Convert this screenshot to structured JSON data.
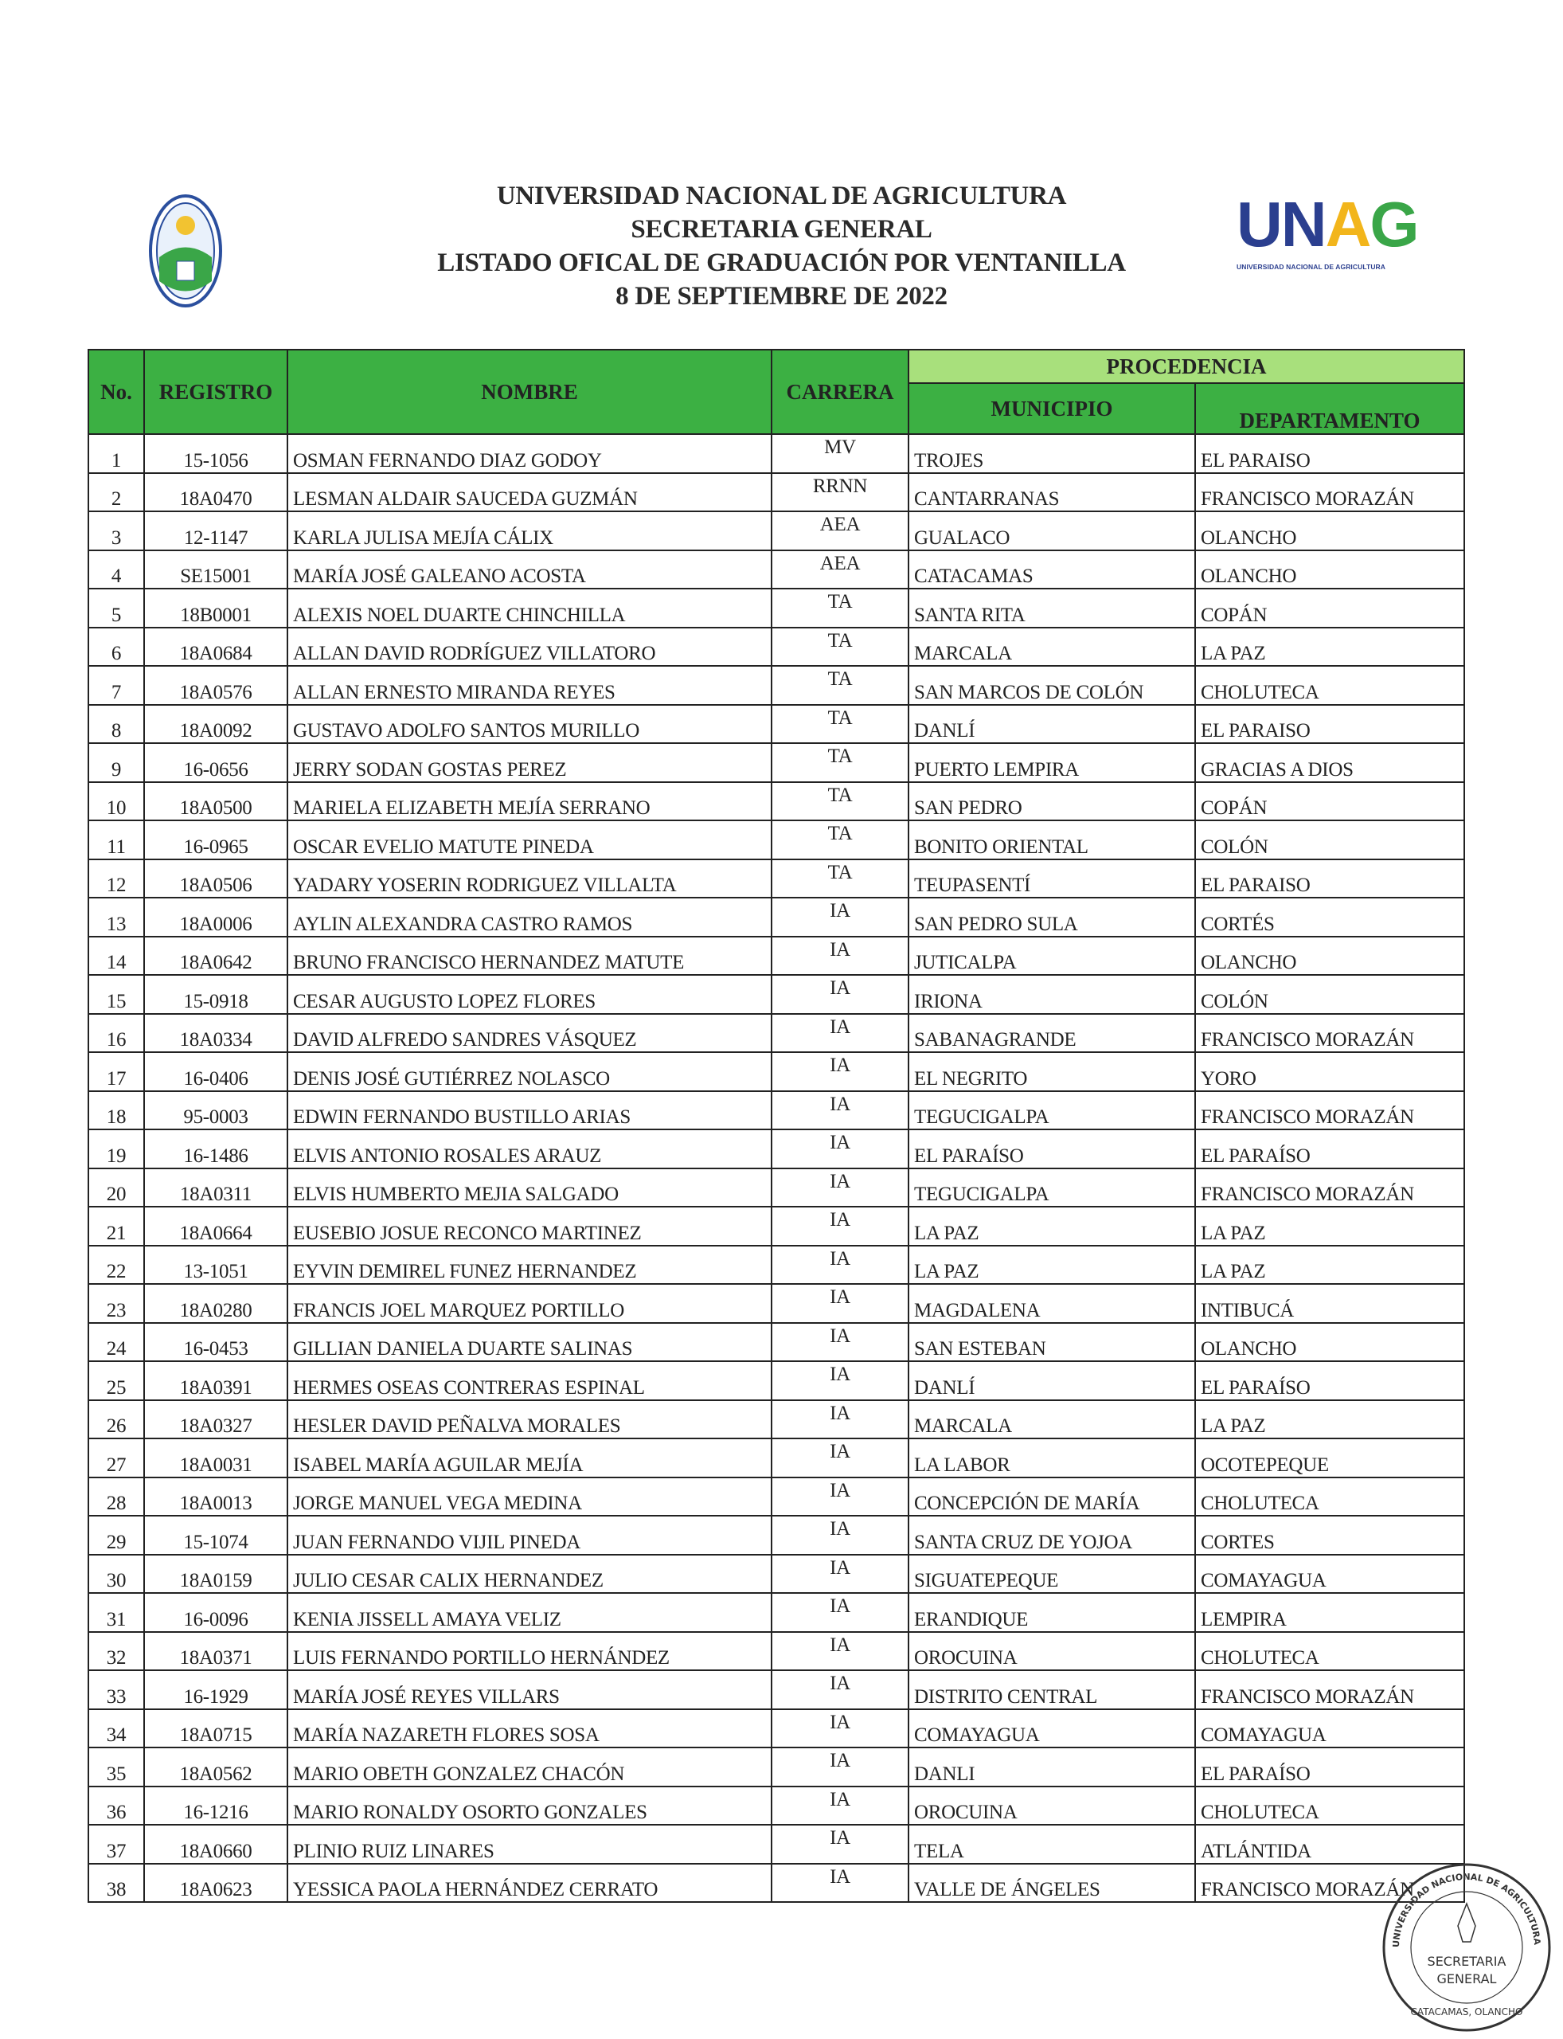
{
  "header": {
    "line1": "UNIVERSIDAD NACIONAL DE AGRICULTURA",
    "line2": "SECRETARIA GENERAL",
    "line3": "LISTADO OFICAL DE GRADUACIÓN POR VENTANILLA",
    "line4": "8 DE SEPTIEMBRE DE 2022"
  },
  "logo": {
    "letters": [
      "U",
      "N",
      "A",
      "G"
    ],
    "subtitle": "UNIVERSIDAD NACIONAL DE AGRICULTURA",
    "colors": {
      "blue": "#2b3f8f",
      "yellow": "#f2b51b",
      "green": "#3aa648"
    }
  },
  "table": {
    "columns": {
      "no": "No.",
      "registro": "REGISTRO",
      "nombre": "NOMBRE",
      "carrera": "CARRERA",
      "procedencia": "PROCEDENCIA",
      "municipio": "MUNICIPIO",
      "departamento": "DEPARTAMENTO"
    },
    "header_color": "#3cb043",
    "group_header_color": "#a8e07c",
    "rows": [
      [
        "1",
        "15-1056",
        "OSMAN FERNANDO DIAZ GODOY",
        "MV",
        "TROJES",
        "EL PARAISO"
      ],
      [
        "2",
        "18A0470",
        "LESMAN ALDAIR SAUCEDA GUZMÁN",
        "RRNN",
        "CANTARRANAS",
        "FRANCISCO  MORAZÁN"
      ],
      [
        "3",
        "12-1147",
        "KARLA JULISA MEJÍA CÁLIX",
        "AEA",
        "GUALACO",
        "OLANCHO"
      ],
      [
        "4",
        "SE15001",
        "MARÍA JOSÉ GALEANO ACOSTA",
        "AEA",
        "CATACAMAS",
        "OLANCHO"
      ],
      [
        "5",
        "18B0001",
        "ALEXIS NOEL DUARTE CHINCHILLA",
        "TA",
        "SANTA RITA",
        "COPÁN"
      ],
      [
        "6",
        "18A0684",
        "ALLAN DAVID RODRÍGUEZ VILLATORO",
        "TA",
        "MARCALA",
        "LA PAZ"
      ],
      [
        "7",
        "18A0576",
        "ALLAN ERNESTO MIRANDA REYES",
        "TA",
        "SAN MARCOS DE COLÓN",
        "CHOLUTECA"
      ],
      [
        "8",
        "18A0092",
        "GUSTAVO ADOLFO SANTOS MURILLO",
        "TA",
        "DANLÍ",
        "EL PARAISO"
      ],
      [
        "9",
        "16-0656",
        "JERRY SODAN GOSTAS PEREZ",
        "TA",
        "PUERTO LEMPIRA",
        "GRACIAS A DIOS"
      ],
      [
        "10",
        "18A0500",
        "MARIELA ELIZABETH MEJÍA SERRANO",
        "TA",
        "SAN PEDRO",
        "COPÁN"
      ],
      [
        "11",
        "16-0965",
        "OSCAR EVELIO MATUTE PINEDA",
        "TA",
        "BONITO ORIENTAL",
        "COLÓN"
      ],
      [
        "12",
        "18A0506",
        "YADARY YOSERIN RODRIGUEZ VILLALTA",
        "TA",
        "TEUPASENTÍ",
        "EL PARAISO"
      ],
      [
        "13",
        "18A0006",
        "AYLIN ALEXANDRA CASTRO RAMOS",
        "IA",
        "SAN PEDRO SULA",
        "CORTÉS"
      ],
      [
        "14",
        "18A0642",
        "BRUNO FRANCISCO HERNANDEZ MATUTE",
        "IA",
        "JUTICALPA",
        "OLANCHO"
      ],
      [
        "15",
        "15-0918",
        "CESAR AUGUSTO LOPEZ FLORES",
        "IA",
        "IRIONA",
        "COLÓN"
      ],
      [
        "16",
        "18A0334",
        "DAVID ALFREDO SANDRES VÁSQUEZ",
        "IA",
        "SABANAGRANDE",
        "FRANCISCO MORAZÁN"
      ],
      [
        "17",
        "16-0406",
        "DENIS JOSÉ GUTIÉRREZ NOLASCO",
        "IA",
        "EL NEGRITO",
        "YORO"
      ],
      [
        "18",
        "95-0003",
        "EDWIN FERNANDO BUSTILLO ARIAS",
        "IA",
        "TEGUCIGALPA",
        "FRANCISCO MORAZÁN"
      ],
      [
        "19",
        "16-1486",
        "ELVIS ANTONIO ROSALES ARAUZ",
        "IA",
        "EL PARAÍSO",
        "EL PARAÍSO"
      ],
      [
        "20",
        "18A0311",
        "ELVIS HUMBERTO MEJIA SALGADO",
        "IA",
        "TEGUCIGALPA",
        "FRANCISCO MORAZÁN"
      ],
      [
        "21",
        "18A0664",
        "EUSEBIO JOSUE RECONCO MARTINEZ",
        "IA",
        "LA PAZ",
        "LA PAZ"
      ],
      [
        "22",
        "13-1051",
        "EYVIN DEMIREL FUNEZ HERNANDEZ",
        "IA",
        "LA PAZ",
        "LA PAZ"
      ],
      [
        "23",
        "18A0280",
        "FRANCIS JOEL MARQUEZ PORTILLO",
        "IA",
        "MAGDALENA",
        "INTIBUCÁ"
      ],
      [
        "24",
        "16-0453",
        "GILLIAN DANIELA DUARTE SALINAS",
        "IA",
        "SAN ESTEBAN",
        "OLANCHO"
      ],
      [
        "25",
        "18A0391",
        "HERMES OSEAS CONTRERAS ESPINAL",
        "IA",
        "DANLÍ",
        "EL PARAÍSO"
      ],
      [
        "26",
        "18A0327",
        "HESLER DAVID PEÑALVA MORALES",
        "IA",
        "MARCALA",
        "LA PAZ"
      ],
      [
        "27",
        "18A0031",
        "ISABEL MARÍA AGUILAR MEJÍA",
        "IA",
        "LA LABOR",
        "OCOTEPEQUE"
      ],
      [
        "28",
        "18A0013",
        "JORGE MANUEL VEGA MEDINA",
        "IA",
        "CONCEPCIÓN DE MARÍA",
        "CHOLUTECA"
      ],
      [
        "29",
        "15-1074",
        "JUAN FERNANDO VIJIL PINEDA",
        "IA",
        "SANTA CRUZ DE YOJOA",
        "CORTES"
      ],
      [
        "30",
        "18A0159",
        "JULIO CESAR CALIX HERNANDEZ",
        "IA",
        "SIGUATEPEQUE",
        "COMAYAGUA"
      ],
      [
        "31",
        "16-0096",
        "KENIA JISSELL AMAYA VELIZ",
        "IA",
        "ERANDIQUE",
        "LEMPIRA"
      ],
      [
        "32",
        "18A0371",
        "LUIS FERNANDO PORTILLO HERNÁNDEZ",
        "IA",
        "OROCUINA",
        "CHOLUTECA"
      ],
      [
        "33",
        "16-1929",
        "MARÍA JOSÉ REYES VILLARS",
        "IA",
        "DISTRITO CENTRAL",
        "FRANCISCO MORAZÁN"
      ],
      [
        "34",
        "18A0715",
        "MARÍA NAZARETH FLORES SOSA",
        "IA",
        "COMAYAGUA",
        "COMAYAGUA"
      ],
      [
        "35",
        "18A0562",
        "MARIO OBETH GONZALEZ CHACÓN",
        "IA",
        "DANLI",
        "EL PARAÍSO"
      ],
      [
        "36",
        "16-1216",
        "MARIO RONALDY OSORTO GONZALES",
        "IA",
        "OROCUINA",
        "CHOLUTECA"
      ],
      [
        "37",
        "18A0660",
        "PLINIO RUIZ LINARES",
        "IA",
        "TELA",
        "ATLÁNTIDA"
      ],
      [
        "38",
        "18A0623",
        "YESSICA PAOLA HERNÁNDEZ CERRATO",
        "IA",
        "VALLE DE ÁNGELES",
        "FRANCISCO MORAZÁN"
      ]
    ]
  },
  "stamp": {
    "ring_text": "UNIVERSIDAD NACIONAL DE AGRICULTURA",
    "center_line1": "SECRETARIA",
    "center_line2": "GENERAL",
    "bottom_text": "CATACAMAS, OLANCHO"
  }
}
